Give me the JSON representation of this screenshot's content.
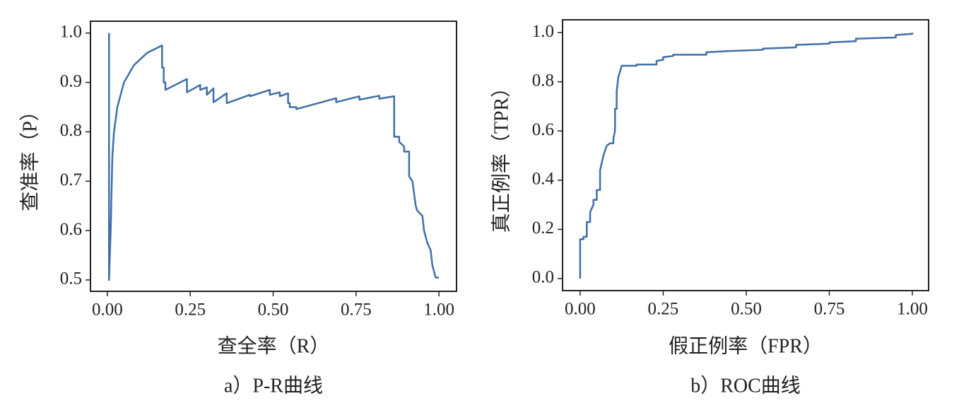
{
  "chart_data": [
    {
      "type": "line",
      "title": "a）P-R曲线",
      "xlabel": "查全率（R）",
      "ylabel": "查准率（P）",
      "xlim": [
        -0.051,
        1.053
      ],
      "ylim": [
        0.477,
        1.024
      ],
      "xticks": [
        {
          "value": 0,
          "label": "0.00"
        },
        {
          "value": 0.25,
          "label": "0.25"
        },
        {
          "value": 0.5,
          "label": "0.50"
        },
        {
          "value": 0.75,
          "label": "0.75"
        },
        {
          "value": 1,
          "label": "1.00"
        }
      ],
      "yticks": [
        0.5,
        0.6,
        0.7,
        0.8,
        0.9,
        {
          "value": 1,
          "label": "1.0"
        }
      ],
      "grid": false,
      "x": [
        0.005,
        0.005,
        0.01,
        0.015,
        0.02,
        0.03,
        0.05,
        0.08,
        0.12,
        0.165,
        0.165,
        0.17,
        0.17,
        0.175,
        0.175,
        0.24,
        0.24,
        0.28,
        0.28,
        0.3,
        0.3,
        0.32,
        0.32,
        0.36,
        0.36,
        0.43,
        0.43,
        0.49,
        0.49,
        0.52,
        0.52,
        0.545,
        0.545,
        0.55,
        0.55,
        0.57,
        0.57,
        0.69,
        0.69,
        0.76,
        0.76,
        0.82,
        0.82,
        0.865,
        0.865,
        0.88,
        0.88,
        0.895,
        0.895,
        0.91,
        0.91,
        0.92,
        0.93,
        0.935,
        0.95,
        0.955,
        0.965,
        0.975,
        0.98,
        0.99,
        1.0
      ],
      "series": [
        {
          "color": "#3f6fa8",
          "values": [
            1.0,
            0.5,
            0.6,
            0.75,
            0.8,
            0.85,
            0.9,
            0.935,
            0.96,
            0.975,
            0.93,
            0.93,
            0.9,
            0.9,
            0.885,
            0.907,
            0.88,
            0.895,
            0.885,
            0.89,
            0.875,
            0.888,
            0.86,
            0.878,
            0.858,
            0.875,
            0.872,
            0.885,
            0.875,
            0.88,
            0.872,
            0.878,
            0.858,
            0.858,
            0.85,
            0.85,
            0.846,
            0.868,
            0.86,
            0.872,
            0.865,
            0.873,
            0.867,
            0.872,
            0.79,
            0.79,
            0.78,
            0.77,
            0.76,
            0.76,
            0.71,
            0.7,
            0.65,
            0.64,
            0.63,
            0.6,
            0.575,
            0.56,
            0.53,
            0.505,
            0.505
          ]
        }
      ]
    },
    {
      "type": "line",
      "title": "b）ROC曲线",
      "xlabel": "假正例率（FPR）",
      "ylabel": "真正例率（TPR）",
      "xlim": [
        -0.053,
        1.049
      ],
      "ylim": [
        -0.049,
        1.052
      ],
      "xticks": [
        {
          "value": 0,
          "label": "0.00"
        },
        {
          "value": 0.25,
          "label": "0.25"
        },
        {
          "value": 0.5,
          "label": "0.50"
        },
        {
          "value": 0.75,
          "label": "0.75"
        },
        {
          "value": 1,
          "label": "1.00"
        }
      ],
      "yticks": [
        {
          "value": 0,
          "label": "0.0"
        },
        0.2,
        0.4,
        0.6,
        0.8,
        {
          "value": 1,
          "label": "1.0"
        }
      ],
      "grid": false,
      "x": [
        0,
        0,
        0.01,
        0.01,
        0.02,
        0.02,
        0.03,
        0.03,
        0.04,
        0.04,
        0.05,
        0.05,
        0.06,
        0.06,
        0.07,
        0.08,
        0.09,
        0.1,
        0.1,
        0.105,
        0.105,
        0.11,
        0.11,
        0.115,
        0.12,
        0.125,
        0.17,
        0.17,
        0.23,
        0.23,
        0.25,
        0.25,
        0.28,
        0.28,
        0.38,
        0.38,
        0.45,
        0.55,
        0.55,
        0.65,
        0.65,
        0.75,
        0.75,
        0.83,
        0.83,
        0.95,
        0.95,
        1.0,
        1.0
      ],
      "series": [
        {
          "color": "#3f6fa8",
          "values": [
            0,
            0.16,
            0.16,
            0.17,
            0.17,
            0.23,
            0.23,
            0.27,
            0.3,
            0.32,
            0.32,
            0.36,
            0.36,
            0.44,
            0.5,
            0.54,
            0.55,
            0.55,
            0.57,
            0.6,
            0.69,
            0.69,
            0.76,
            0.82,
            0.84,
            0.865,
            0.865,
            0.87,
            0.87,
            0.885,
            0.89,
            0.9,
            0.905,
            0.91,
            0.91,
            0.92,
            0.925,
            0.93,
            0.935,
            0.94,
            0.95,
            0.955,
            0.96,
            0.965,
            0.975,
            0.98,
            0.99,
            0.995,
            1.0
          ]
        }
      ]
    }
  ]
}
